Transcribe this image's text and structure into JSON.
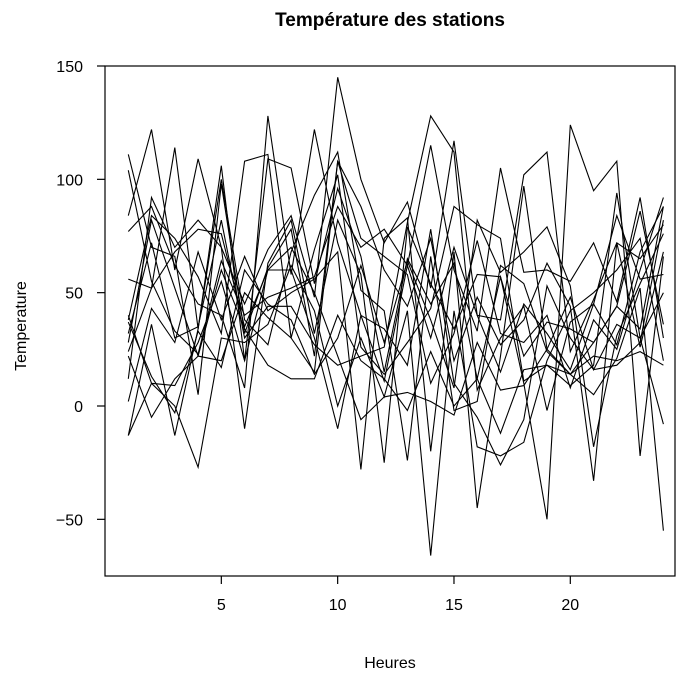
{
  "chart_data": {
    "type": "line",
    "title": "Température des stations",
    "xlabel": "Heures",
    "ylabel": "Temperature",
    "xlim": [
      0,
      24.5
    ],
    "ylim": [
      -75,
      150
    ],
    "xticks": [
      5,
      10,
      15,
      20
    ],
    "yticks": [
      -50,
      0,
      50,
      100,
      150
    ],
    "grid": false,
    "legend": "none",
    "line_color": "#000000",
    "x": [
      1,
      2,
      3,
      4,
      5,
      6,
      7,
      8,
      9,
      10,
      11,
      12,
      13,
      14,
      15,
      16,
      17,
      18,
      19,
      20,
      21,
      22,
      23,
      24
    ],
    "series": [
      {
        "values": [
          111,
          70,
          66,
          5,
          98,
          32,
          61,
          78,
          22,
          108,
          74,
          66,
          58,
          10,
          32,
          73,
          32,
          28,
          40,
          8,
          38,
          25,
          60,
          92
        ]
      },
      {
        "values": [
          104,
          55,
          33,
          23,
          64,
          40,
          48,
          52,
          57,
          88,
          70,
          78,
          62,
          30,
          70,
          40,
          15,
          45,
          32,
          16,
          45,
          27,
          68,
          88
        ]
      },
      {
        "values": [
          84,
          122,
          60,
          109,
          70,
          45,
          69,
          84,
          48,
          145,
          100,
          72,
          90,
          52,
          117,
          40,
          38,
          102,
          112,
          24,
          47,
          72,
          65,
          80
        ]
      },
      {
        "values": [
          56,
          52,
          114,
          34,
          106,
          20,
          109,
          105,
          54,
          96,
          66,
          15,
          65,
          45,
          63,
          12,
          57,
          22,
          37,
          34,
          28,
          44,
          34,
          88
        ]
      },
      {
        "values": [
          38,
          84,
          74,
          57,
          32,
          108,
          111,
          30,
          69,
          102,
          26,
          14,
          28,
          43,
          88,
          80,
          74,
          11,
          18,
          9,
          18,
          94,
          30,
          -8
        ]
      },
      {
        "values": [
          32,
          72,
          30,
          35,
          82,
          30,
          44,
          44,
          27,
          18,
          22,
          26,
          81,
          128,
          112,
          7,
          30,
          44,
          -2,
          37,
          45,
          84,
          56,
          58
        ]
      },
      {
        "values": [
          12,
          92,
          70,
          82,
          70,
          -10,
          63,
          82,
          32,
          82,
          58,
          -25,
          79,
          54,
          34,
          58,
          57,
          10,
          -50,
          124,
          95,
          108,
          -22,
          66
        ]
      },
      {
        "values": [
          -13,
          36,
          -13,
          34,
          100,
          38,
          27,
          68,
          93,
          112,
          51,
          42,
          -24,
          66,
          -2,
          2,
          62,
          54,
          24,
          14,
          5,
          21,
          52,
          -55
        ]
      },
      {
        "values": [
          77,
          88,
          62,
          45,
          40,
          8,
          128,
          58,
          122,
          72,
          40,
          11,
          62,
          115,
          60,
          33,
          105,
          59,
          60,
          55,
          72,
          46,
          92,
          30
        ]
      },
      {
        "values": [
          37,
          13,
          -3,
          33,
          17,
          60,
          45,
          38,
          14,
          30,
          62,
          28,
          64,
          38,
          8,
          82,
          59,
          68,
          79,
          53,
          -18,
          31,
          54,
          76
        ]
      },
      {
        "values": [
          2,
          43,
          28,
          68,
          38,
          66,
          42,
          50,
          56,
          68,
          -28,
          74,
          83,
          -20,
          68,
          -45,
          22,
          97,
          25,
          14,
          28,
          44,
          86,
          36
        ]
      },
      {
        "values": [
          28,
          82,
          52,
          22,
          20,
          50,
          39,
          30,
          15,
          108,
          88,
          60,
          44,
          74,
          20,
          48,
          27,
          38,
          63,
          44,
          -33,
          72,
          26,
          68
        ]
      },
      {
        "values": [
          22,
          -5,
          12,
          22,
          60,
          34,
          18,
          12,
          12,
          40,
          20,
          12,
          -2,
          24,
          0,
          12,
          -12,
          16,
          18,
          14,
          22,
          20,
          24,
          18
        ]
      },
      {
        "values": [
          40,
          10,
          9,
          28,
          55,
          20,
          60,
          70,
          50,
          22,
          -6,
          4,
          6,
          2,
          -4,
          28,
          7,
          9,
          25,
          48,
          16,
          36,
          30,
          50
        ]
      },
      {
        "values": [
          -13,
          10,
          0,
          -27,
          30,
          28,
          36,
          62,
          42,
          0,
          30,
          4,
          42,
          -66,
          42,
          -18,
          -22,
          -16,
          20,
          42,
          50,
          60,
          74,
          20
        ]
      },
      {
        "values": [
          24,
          52,
          68,
          78,
          76,
          35,
          60,
          60,
          30,
          -10,
          40,
          34,
          18,
          78,
          10,
          -5,
          -26,
          -6,
          53,
          30,
          16,
          18,
          28,
          82
        ]
      }
    ]
  }
}
